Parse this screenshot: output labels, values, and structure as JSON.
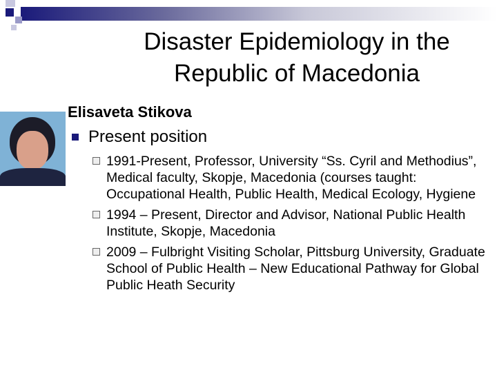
{
  "slide": {
    "title": "Disaster Epidemiology in the Republic of Macedonia",
    "name": "Elisaveta Stikova",
    "bullet": "Present position",
    "sub_bullets": [
      "1991-Present, Professor, University “Ss. Cyril and Methodius”, Medical faculty, Skopje, Macedonia (courses taught: Occupational Health, Public Health, Medical Ecology, Hygiene",
      "1994 – Present, Director and Advisor, National Public Health Institute, Skopje, Macedonia",
      "2009 – Fulbright Visiting Scholar, Pittsburg University, Graduate School of Public Health – New Educational Pathway for Global Public Heath Security"
    ],
    "accent_color": "#1a1a7a"
  }
}
